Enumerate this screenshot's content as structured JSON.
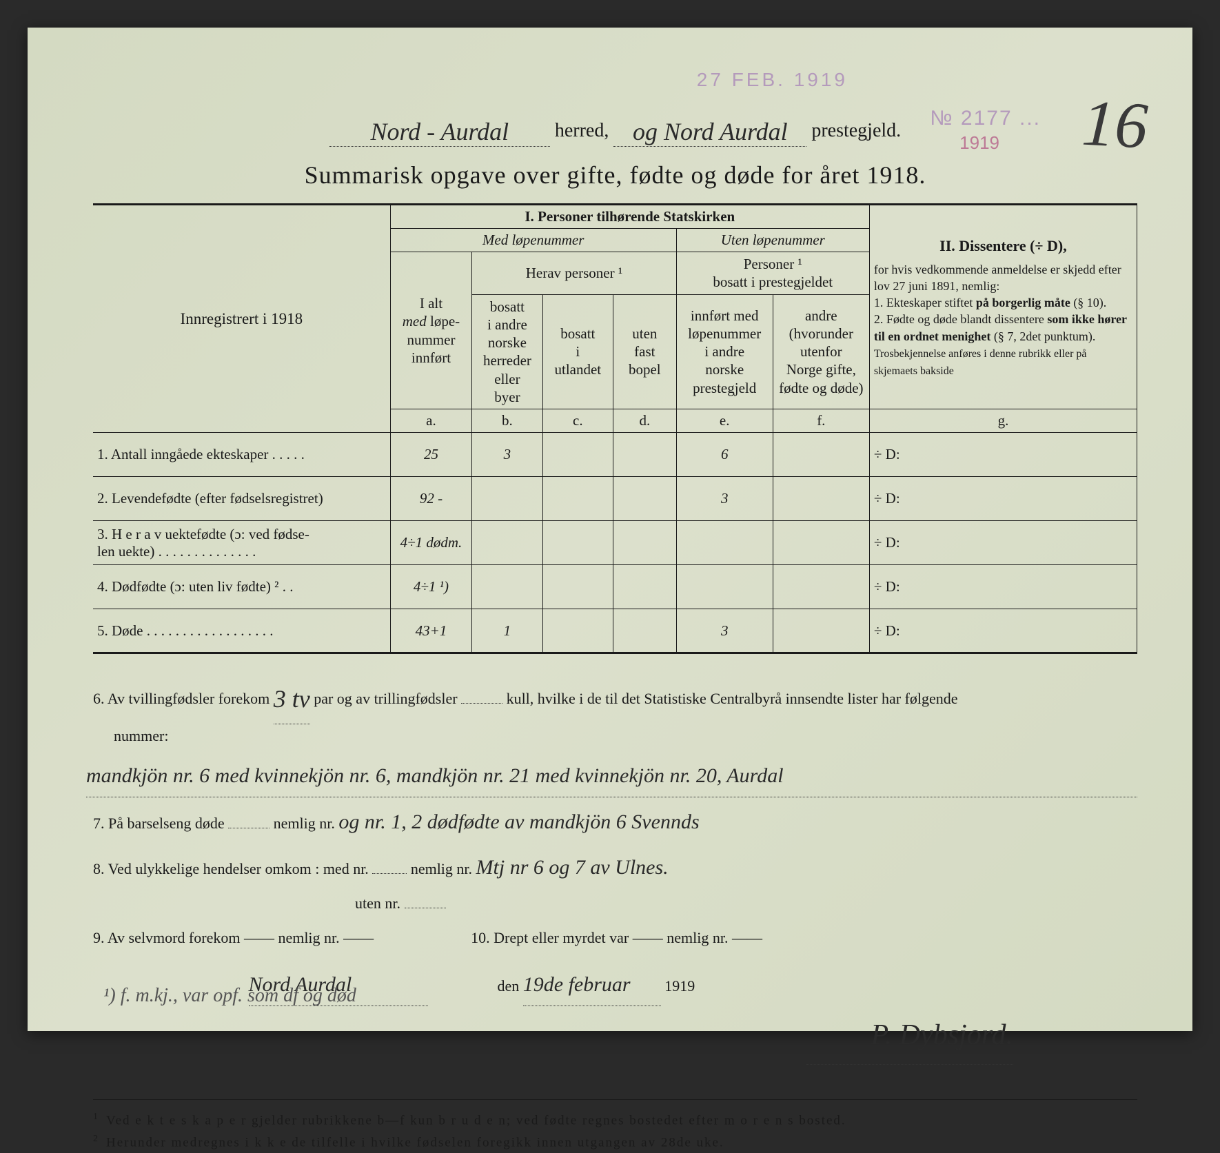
{
  "stamps": {
    "top": "27 FEB. 1919",
    "right": "№ 2177 ...",
    "year": "1919"
  },
  "page_number": "16",
  "header": {
    "herred_hw": "Nord - Aurdal",
    "herred_label": "herred,",
    "og_hw": "og Nord Aurdal",
    "preste_label": "prestegjeld."
  },
  "title": "Summarisk opgave over gifte, fødte og døde for året 1918.",
  "reg_label": "Innregistrert i 1918",
  "section1": {
    "title": "I.  Personer tilhørende Statskirken",
    "med": "Med løpenummer",
    "uten": "Uten løpenummer",
    "herav": "Herav personer ¹",
    "pers_bosatt": "Personer ¹\nbosatt i prestegjeldet",
    "col_a": "I alt\nmed løpe-\nnummer\ninnført",
    "col_b": "bosatt\ni andre\nnorske\nherreder\neller\nbyer",
    "col_c": "bosatt\ni\nutlandet",
    "col_d": "uten\nfast\nbopel",
    "col_e": "innført med\nløpenummer\ni andre\nnorske\nprestegjeld",
    "col_f": "andre\n(hvorunder\nutenfor\nNorge gifte,\nfødte og døde)",
    "letters": [
      "a.",
      "b.",
      "c.",
      "d.",
      "e.",
      "f.",
      "g."
    ]
  },
  "section2": {
    "title": "II.  Dissentere (÷ D),",
    "body": "for hvis vedkommende anmeldelse er skjedd efter lov 27 juni 1891, nemlig:\n1. Ekteskaper stiftet på borgerlig måte (§ 10).\n2. Fødte og døde blandt dissentere som ikke hører til en ordnet menighet (§ 7, 2det punktum).\nTrosbekjennelse anføres i denne rubrikk eller på skjemaets bakside"
  },
  "rows": [
    {
      "label": "1. Antall inngåede ekteskaper . . . . .",
      "a": "25",
      "b": "3",
      "c": "",
      "d": "",
      "e": "6",
      "f": "",
      "g": "÷ D:"
    },
    {
      "label": "2. Levendefødte (efter fødselsregistret)",
      "a": "92 -",
      "b": "",
      "c": "",
      "d": "",
      "e": "3",
      "f": "",
      "g": "÷ D:"
    },
    {
      "label": "3. H e r a v uektefødte (ɔ: ved fødse-\n    len uekte) . . . . . . . . . . . . . .",
      "a": "4÷1 dødm.",
      "b": "",
      "c": "",
      "d": "",
      "e": "",
      "f": "",
      "g": "÷ D:"
    },
    {
      "label": "4. Dødfødte (ɔ: uten liv fødte) ² . .",
      "a": "4÷1 ¹)",
      "b": "",
      "c": "",
      "d": "",
      "e": "",
      "f": "",
      "g": "÷ D:"
    },
    {
      "label": "5. Døde . . . . . . . . . . . . . . . . . .",
      "a": "43+1",
      "b": "1",
      "c": "",
      "d": "",
      "e": "3",
      "f": "",
      "g": "÷ D:"
    }
  ],
  "q6": {
    "pre": "6. Av tvillingfødsler forekom",
    "hw1": "3 tv",
    "mid": "par og av trillingfødsler",
    "post": "kull, hvilke i de til det Statistiske Centralbyrå innsendte lister har følgende",
    "nummer": "nummer:",
    "hw_line": "mandkjön nr. 6 med kvinnekjön nr. 6, mandkjön nr. 21 med kvinnekjön nr. 20, Aurdal"
  },
  "q7": {
    "pre": "7. På barselseng døde",
    "mid": "nemlig nr.",
    "hw": "og nr. 1, 2 dødfødte av mandkjön 6 Svennds"
  },
  "q8": {
    "pre": "8. Ved ulykkelige hendelser omkom :  med nr.",
    "mid": "nemlig nr.",
    "hw": "Mtj nr 6 og 7 av Ulnes.",
    "uten": "uten nr."
  },
  "q9": "9. Av selvmord forekom —— nemlig nr. ——",
  "q10": "10.  Drept eller myrdet var —— nemlig nr. ——",
  "signature": {
    "place_hw": "Nord Aurdal",
    "den": "den",
    "date_hw": "19de februar",
    "year": "1919",
    "name_hw": "P. Dybsjord."
  },
  "footnotes": {
    "f1": "Ved e k t e s k a p e r gjelder rubrikkene b—f kun b r u d e n; ved fødte regnes bostedet efter m o r e n s bosted.",
    "f2": "Herunder medregnes i k k e de tilfelle i hvilke fødselen foregikk innen utgangen av 28de uke."
  },
  "margin_note": "¹) f. m.kj., var opf. som df og død"
}
